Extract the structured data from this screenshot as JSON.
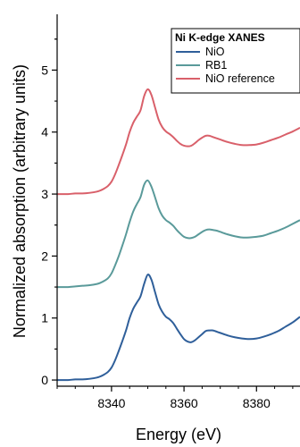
{
  "chart_data": {
    "type": "line",
    "xlabel": "Energy (eV)",
    "ylabel": "Normalized absorption (arbitrary units)",
    "xlim": [
      8325,
      8392
    ],
    "ylim": [
      -0.1,
      5.9
    ],
    "x_ticks": [
      8340,
      8360,
      8380
    ],
    "y_ticks": [
      0,
      1,
      2,
      3,
      4,
      5
    ],
    "grid": false,
    "legend_title": "Ni K-edge XANES",
    "legend_position": "top-right",
    "series": [
      {
        "name": "NiO",
        "color": "#2f5f9a",
        "offset": 0,
        "x": [
          8325,
          8328,
          8330,
          8332,
          8334,
          8336,
          8337,
          8338,
          8339,
          8340,
          8341,
          8342,
          8343,
          8344,
          8345,
          8346,
          8347,
          8348,
          8349,
          8350,
          8351,
          8352,
          8353,
          8354,
          8355,
          8356,
          8357,
          8358,
          8359,
          8360,
          8361,
          8362,
          8363,
          8364,
          8365,
          8366,
          8367,
          8368,
          8369,
          8370,
          8372,
          8374,
          8376,
          8378,
          8380,
          8382,
          8384,
          8386,
          8388,
          8390,
          8392
        ],
        "y": [
          0.0,
          0.0,
          0.01,
          0.01,
          0.02,
          0.04,
          0.06,
          0.09,
          0.13,
          0.2,
          0.32,
          0.47,
          0.63,
          0.8,
          1.0,
          1.15,
          1.25,
          1.35,
          1.55,
          1.7,
          1.62,
          1.42,
          1.22,
          1.1,
          1.02,
          0.98,
          0.92,
          0.83,
          0.74,
          0.66,
          0.62,
          0.61,
          0.64,
          0.69,
          0.74,
          0.79,
          0.8,
          0.8,
          0.78,
          0.76,
          0.72,
          0.69,
          0.67,
          0.66,
          0.67,
          0.7,
          0.74,
          0.79,
          0.86,
          0.93,
          1.02
        ]
      },
      {
        "name": "RB1",
        "color": "#5a9a9a",
        "offset": 1.5,
        "x": [
          8325,
          8328,
          8330,
          8332,
          8334,
          8336,
          8337,
          8338,
          8339,
          8340,
          8341,
          8342,
          8343,
          8344,
          8345,
          8346,
          8347,
          8348,
          8349,
          8350,
          8351,
          8352,
          8353,
          8354,
          8355,
          8356,
          8357,
          8358,
          8359,
          8360,
          8361,
          8362,
          8363,
          8364,
          8365,
          8366,
          8367,
          8368,
          8369,
          8370,
          8372,
          8374,
          8376,
          8378,
          8380,
          8382,
          8384,
          8386,
          8388,
          8390,
          8392
        ],
        "y": [
          1.5,
          1.5,
          1.51,
          1.52,
          1.53,
          1.55,
          1.57,
          1.6,
          1.64,
          1.72,
          1.85,
          2.0,
          2.17,
          2.35,
          2.55,
          2.72,
          2.84,
          2.95,
          3.15,
          3.22,
          3.12,
          2.95,
          2.77,
          2.65,
          2.58,
          2.54,
          2.49,
          2.42,
          2.36,
          2.31,
          2.29,
          2.29,
          2.31,
          2.35,
          2.39,
          2.42,
          2.43,
          2.42,
          2.41,
          2.39,
          2.35,
          2.32,
          2.3,
          2.3,
          2.31,
          2.33,
          2.37,
          2.41,
          2.46,
          2.52,
          2.58
        ]
      },
      {
        "name": "NiO reference",
        "color": "#d9606a",
        "offset": 3.0,
        "x": [
          8325,
          8328,
          8330,
          8332,
          8334,
          8336,
          8337,
          8338,
          8339,
          8340,
          8341,
          8342,
          8343,
          8344,
          8345,
          8346,
          8347,
          8348,
          8349,
          8350,
          8351,
          8352,
          8353,
          8354,
          8355,
          8356,
          8357,
          8358,
          8359,
          8360,
          8361,
          8362,
          8363,
          8364,
          8365,
          8366,
          8367,
          8368,
          8369,
          8370,
          8372,
          8374,
          8376,
          8378,
          8380,
          8382,
          8384,
          8386,
          8388,
          8390,
          8392
        ],
        "y": [
          3.0,
          3.0,
          3.01,
          3.01,
          3.02,
          3.04,
          3.06,
          3.09,
          3.13,
          3.2,
          3.32,
          3.47,
          3.63,
          3.8,
          4.0,
          4.15,
          4.25,
          4.35,
          4.58,
          4.69,
          4.6,
          4.4,
          4.2,
          4.08,
          4.01,
          3.97,
          3.92,
          3.86,
          3.81,
          3.78,
          3.77,
          3.78,
          3.82,
          3.87,
          3.91,
          3.94,
          3.94,
          3.92,
          3.9,
          3.88,
          3.84,
          3.81,
          3.79,
          3.79,
          3.8,
          3.83,
          3.87,
          3.91,
          3.96,
          4.01,
          4.07
        ]
      }
    ]
  }
}
